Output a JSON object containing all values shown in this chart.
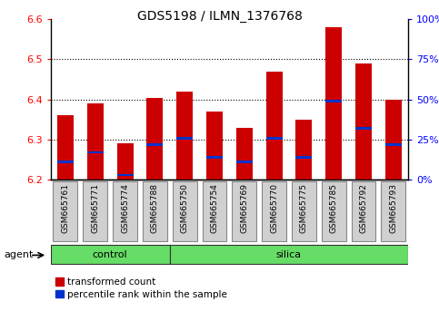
{
  "title": "GDS5198 / ILMN_1376768",
  "samples": [
    "GSM665761",
    "GSM665771",
    "GSM665774",
    "GSM665788",
    "GSM665750",
    "GSM665754",
    "GSM665769",
    "GSM665770",
    "GSM665775",
    "GSM665785",
    "GSM665792",
    "GSM665793"
  ],
  "groups": [
    "control",
    "control",
    "control",
    "control",
    "silica",
    "silica",
    "silica",
    "silica",
    "silica",
    "silica",
    "silica",
    "silica"
  ],
  "bar_values": [
    6.36,
    6.39,
    6.29,
    6.405,
    6.42,
    6.37,
    6.33,
    6.47,
    6.35,
    6.58,
    6.49,
    6.4
  ],
  "bar_base": 6.2,
  "percentile_pct": [
    11,
    17,
    3,
    22,
    26,
    14,
    11,
    26,
    14,
    49,
    32,
    22
  ],
  "ylim": [
    6.2,
    6.6
  ],
  "yticks_left": [
    6.2,
    6.3,
    6.4,
    6.5,
    6.6
  ],
  "yticks_right": [
    0,
    25,
    50,
    75,
    100
  ],
  "bar_color": "#cc0000",
  "blue_color": "#0033cc",
  "control_color": "#66dd66",
  "legend_items": [
    "transformed count",
    "percentile rank within the sample"
  ],
  "bar_width": 0.55,
  "control_count": 4,
  "silica_count": 8,
  "agent_label": "agent"
}
